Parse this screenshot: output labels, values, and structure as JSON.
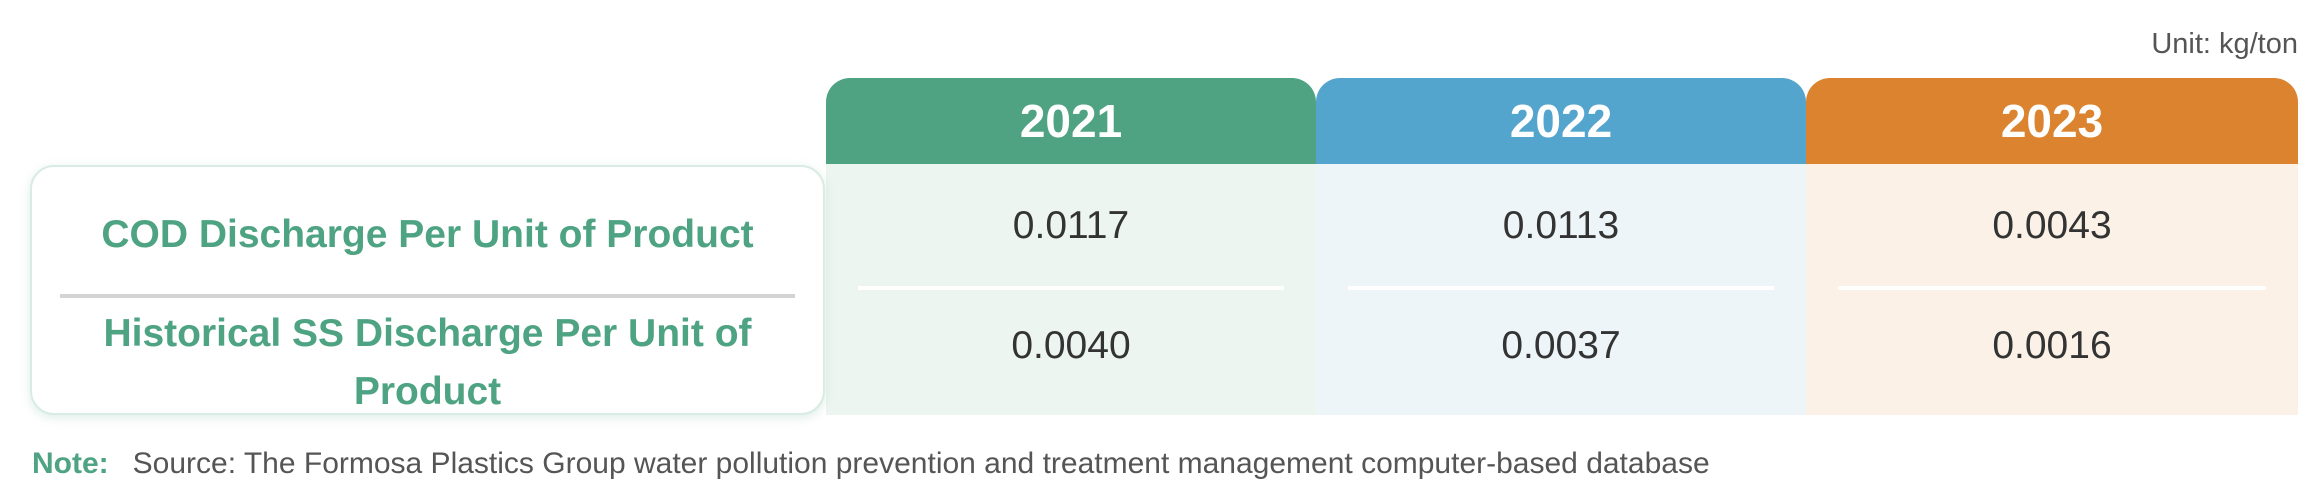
{
  "unit_label": "Unit: kg/ton",
  "columns": [
    {
      "year": "2021",
      "header_color": "#4fa382",
      "body_color": "#edf5f1"
    },
    {
      "year": "2022",
      "header_color": "#53a5ce",
      "body_color": "#edf5f8"
    },
    {
      "year": "2023",
      "header_color": "#db832f",
      "body_color": "#fbf1e7"
    }
  ],
  "rows": [
    {
      "label": "COD Discharge Per Unit of Product",
      "values": [
        "0.0117",
        "0.0113",
        "0.0043"
      ]
    },
    {
      "label": "Historical SS Discharge Per Unit of Product",
      "values": [
        "0.0040",
        "0.0037",
        "0.0016"
      ]
    }
  ],
  "note": {
    "label": "Note:",
    "text": "Source: The Formosa Plastics Group water pollution prevention and treatment management computer-based database"
  }
}
